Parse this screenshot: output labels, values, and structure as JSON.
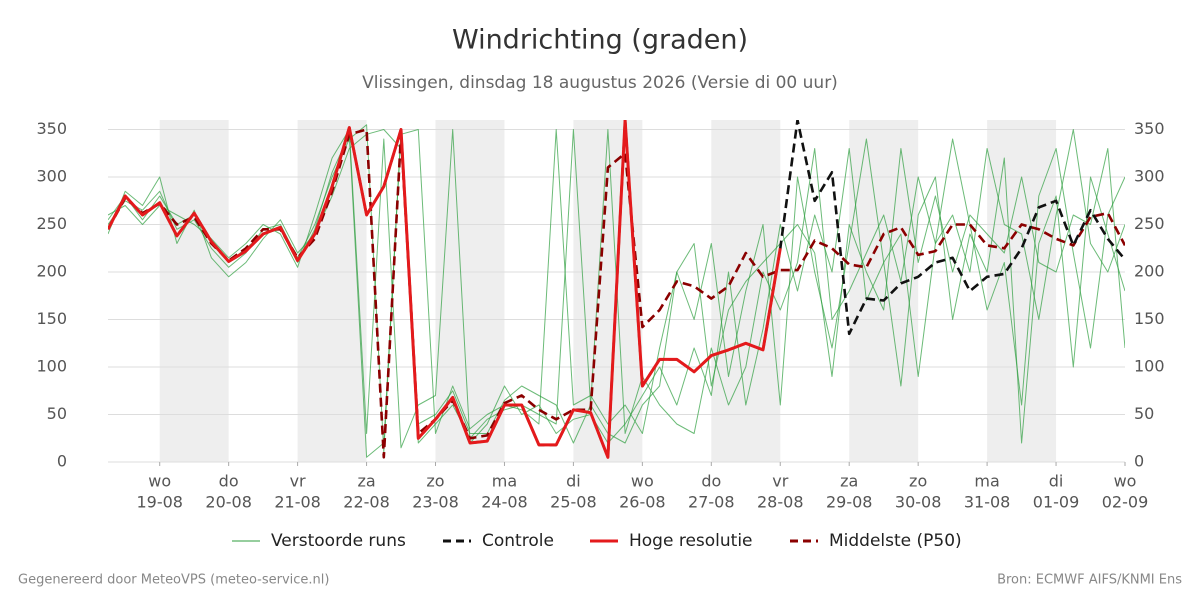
{
  "chart_data": {
    "type": "line",
    "title": "Windrichting (graden)",
    "subtitle": "Vlissingen, dinsdag 18 augustus 2026 (Versie di 00 uur)",
    "footer_left": "Gegenereerd door MeteoVPS (meteo-service.nl)",
    "footer_right": "Bron: ECMWF AIFS/KNMI Ens",
    "x": [
      0.25,
      0.5,
      0.75,
      1,
      1.25,
      1.5,
      1.75,
      2,
      2.25,
      2.5,
      2.75,
      3,
      3.25,
      3.5,
      3.75,
      4,
      4.25,
      4.5,
      4.75,
      5,
      5.25,
      5.5,
      5.75,
      6,
      6.25,
      6.5,
      6.75,
      7,
      7.25,
      7.5,
      7.75,
      8,
      8.25,
      8.5,
      8.75,
      9,
      9.25,
      9.5,
      9.75,
      10,
      10.25,
      10.5,
      10.75,
      11,
      11.25,
      11.5,
      11.75,
      12,
      12.25,
      12.5,
      12.75,
      13,
      13.25,
      13.5,
      13.75,
      14,
      14.25,
      14.5,
      14.75,
      15
    ],
    "xlim": [
      0.25,
      15
    ],
    "xticks": [
      {
        "value": 1,
        "day": "wo",
        "date": "19-08"
      },
      {
        "value": 2,
        "day": "do",
        "date": "20-08"
      },
      {
        "value": 3,
        "day": "vr",
        "date": "21-08"
      },
      {
        "value": 4,
        "day": "za",
        "date": "22-08"
      },
      {
        "value": 5,
        "day": "zo",
        "date": "23-08"
      },
      {
        "value": 6,
        "day": "ma",
        "date": "24-08"
      },
      {
        "value": 7,
        "day": "di",
        "date": "25-08"
      },
      {
        "value": 8,
        "day": "wo",
        "date": "26-08"
      },
      {
        "value": 9,
        "day": "do",
        "date": "27-08"
      },
      {
        "value": 10,
        "day": "vr",
        "date": "28-08"
      },
      {
        "value": 11,
        "day": "za",
        "date": "29-08"
      },
      {
        "value": 12,
        "day": "zo",
        "date": "30-08"
      },
      {
        "value": 13,
        "day": "ma",
        "date": "31-08"
      },
      {
        "value": 14,
        "day": "di",
        "date": "01-09"
      },
      {
        "value": 15,
        "day": "wo",
        "date": "02-09"
      }
    ],
    "ylim": [
      0,
      360
    ],
    "yticks": [
      0,
      50,
      100,
      150,
      200,
      250,
      300,
      350
    ],
    "grid": true,
    "ensemble": {
      "name": "Verstoorde runs",
      "color": "#2e9e3e",
      "members": [
        [
          250,
          275,
          265,
          285,
          245,
          255,
          225,
          205,
          220,
          245,
          250,
          215,
          250,
          300,
          340,
          355,
          10,
          350,
          20,
          40,
          60,
          25,
          45,
          55,
          60,
          50,
          40,
          350,
          60,
          30,
          20,
          60,
          80,
          200,
          150,
          230,
          90,
          180,
          250,
          60,
          300,
          200,
          120,
          230,
          340,
          210,
          80,
          260,
          300,
          150,
          240,
          200,
          320,
          20,
          230,
          280,
          100,
          300,
          240,
          180
        ],
        [
          260,
          270,
          250,
          270,
          260,
          250,
          235,
          215,
          230,
          250,
          240,
          205,
          260,
          320,
          350,
          30,
          340,
          15,
          60,
          70,
          350,
          20,
          40,
          80,
          50,
          60,
          30,
          45,
          50,
          20,
          40,
          70,
          100,
          60,
          120,
          70,
          200,
          60,
          140,
          250,
          180,
          260,
          200,
          330,
          170,
          210,
          240,
          90,
          230,
          340,
          250,
          160,
          210,
          60,
          280,
          330,
          220,
          120,
          260,
          300
        ],
        [
          240,
          285,
          270,
          300,
          230,
          265,
          215,
          195,
          210,
          235,
          255,
          220,
          240,
          280,
          330,
          345,
          350,
          330,
          40,
          50,
          75,
          30,
          30,
          65,
          80,
          70,
          60,
          20,
          60,
          350,
          30,
          90,
          60,
          40,
          30,
          120,
          60,
          100,
          200,
          160,
          210,
          330,
          150,
          180,
          220,
          260,
          190,
          300,
          230,
          260,
          200,
          330,
          250,
          240,
          150,
          260,
          350,
          230,
          200,
          250
        ],
        [
          255,
          280,
          255,
          280,
          250,
          260,
          230,
          210,
          225,
          240,
          245,
          210,
          245,
          305,
          345,
          5,
          20,
          345,
          350,
          30,
          80,
          35,
          50,
          60,
          55,
          40,
          350,
          60,
          70,
          40,
          60,
          30,
          120,
          200,
          230,
          80,
          160,
          190,
          210,
          230,
          250,
          220,
          90,
          250,
          200,
          160,
          330,
          210,
          280,
          200,
          260,
          240,
          220,
          300,
          210,
          200,
          260,
          250,
          330,
          120
        ]
      ]
    },
    "series": [
      {
        "name": "Controle",
        "color": "#111111",
        "dashed": true,
        "values": [
          245,
          280,
          260,
          273,
          238,
          262,
          232,
          211,
          222,
          240,
          247,
          212,
          240,
          290,
          352,
          260,
          290,
          350,
          25,
          45,
          68,
          20,
          22,
          60,
          60,
          18,
          18,
          55,
          52,
          5,
          360,
          80,
          108,
          108,
          95,
          112,
          118,
          125,
          118,
          225,
          360,
          275,
          305,
          135,
          172,
          170,
          188,
          195,
          210,
          215,
          180,
          195,
          198,
          225,
          268,
          275,
          228,
          265,
          235,
          213
        ]
      },
      {
        "name": "Hoge resolutie",
        "color": "#e41a1c",
        "dashed": false,
        "values": [
          245,
          280,
          260,
          273,
          238,
          262,
          232,
          211,
          222,
          240,
          247,
          212,
          240,
          290,
          352,
          260,
          290,
          350,
          25,
          45,
          68,
          20,
          22,
          60,
          60,
          18,
          18,
          55,
          52,
          5,
          360,
          80,
          108,
          108,
          95,
          112,
          118,
          125,
          118,
          225,
          null,
          null,
          null,
          null,
          null,
          null,
          null,
          null,
          null,
          null,
          null,
          null,
          null,
          null,
          null,
          null,
          null,
          null,
          null,
          null
        ]
      },
      {
        "name": "Middelste (P50)",
        "color": "#8b0000",
        "dashed": true,
        "values": [
          245,
          278,
          262,
          272,
          250,
          258,
          230,
          212,
          225,
          245,
          245,
          215,
          235,
          285,
          345,
          350,
          5,
          345,
          30,
          45,
          65,
          25,
          28,
          62,
          70,
          55,
          45,
          55,
          55,
          310,
          325,
          142,
          160,
          190,
          185,
          172,
          185,
          220,
          195,
          202,
          202,
          233,
          225,
          208,
          205,
          240,
          247,
          218,
          222,
          250,
          250,
          228,
          225,
          250,
          245,
          235,
          228,
          258,
          262,
          228
        ]
      }
    ]
  }
}
